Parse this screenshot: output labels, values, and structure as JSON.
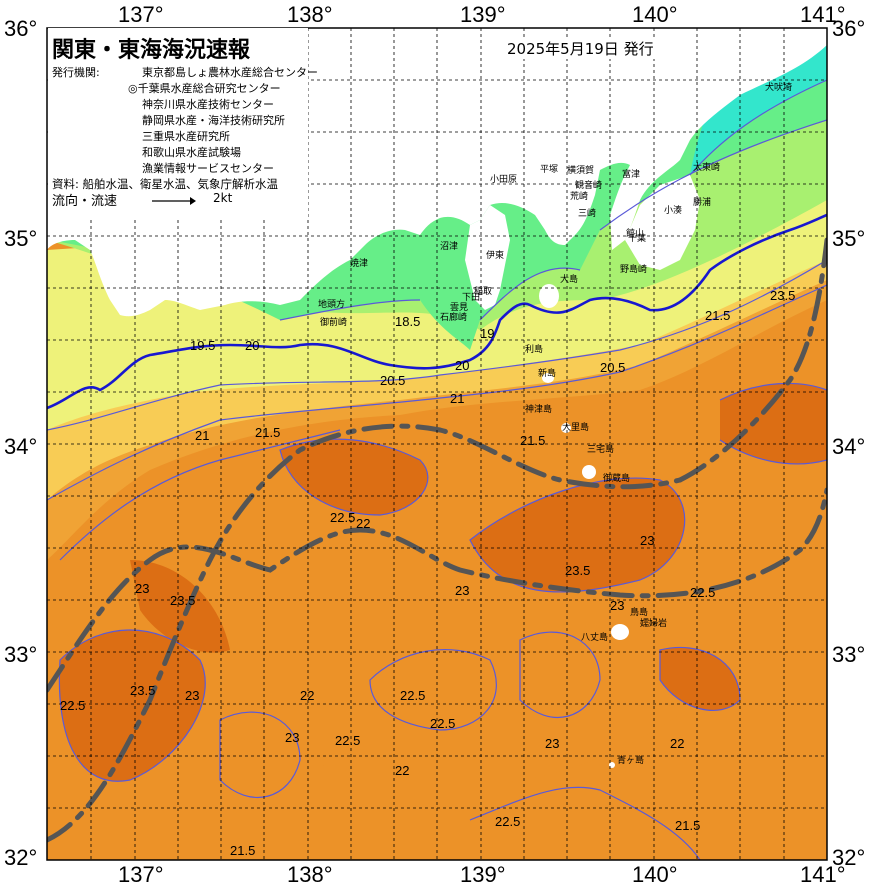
{
  "title": "関東・東海海況速報",
  "issue_date": "2025年5月19日 発行",
  "agency_label": "発行機関:",
  "agencies": [
    "東京都島しょ農林水産総合センター",
    "◎千葉県水産総合研究センター",
    "神奈川県水産技術センター",
    "静岡県水産・海洋技術研究所",
    "三重県水産研究所",
    "和歌山県水産試験場",
    "漁業情報サービスセンター"
  ],
  "source": "資料: 船舶水温、衛星水温、気象庁解析水温",
  "flow_label": "流向・流速",
  "scale_label": "2kt",
  "lon_labels": [
    "137°",
    "138°",
    "139°",
    "140°",
    "141°"
  ],
  "lat_labels": [
    "36°",
    "35°",
    "34°",
    "33°",
    "32°"
  ],
  "places": [
    {
      "name": "犬吠埼"
    },
    {
      "name": "太東崎"
    },
    {
      "name": "勝浦"
    },
    {
      "name": "小湊"
    },
    {
      "name": "千葉"
    },
    {
      "name": "富津"
    },
    {
      "name": "館山"
    },
    {
      "name": "野島崎"
    },
    {
      "name": "横須賀"
    },
    {
      "name": "観音崎"
    },
    {
      "name": "荒崎"
    },
    {
      "name": "三崎"
    },
    {
      "name": "平塚"
    },
    {
      "name": "小田原"
    },
    {
      "name": "伊東"
    },
    {
      "name": "稲取"
    },
    {
      "name": "下田"
    },
    {
      "name": "大島"
    },
    {
      "name": "利島"
    },
    {
      "name": "新島"
    },
    {
      "name": "神津島"
    },
    {
      "name": "三宅島"
    },
    {
      "name": "御蔵島"
    },
    {
      "name": "八丈島"
    },
    {
      "name": "青ヶ島"
    },
    {
      "name": "鳥島"
    },
    {
      "name": "雲見"
    },
    {
      "name": "石廊崎"
    },
    {
      "name": "沼津"
    },
    {
      "name": "焼津"
    },
    {
      "name": "御前崎"
    },
    {
      "name": "地頭方"
    },
    {
      "name": "大里島"
    },
    {
      "name": "嬬婦岩"
    }
  ],
  "isotherm_labels": [
    "18.5",
    "19",
    "19.5",
    "20",
    "20.5",
    "21",
    "21.5",
    "22",
    "22.5",
    "23",
    "23.5"
  ],
  "colors": {
    "t_lt18": "#33e6cc",
    "t_18": "#66ee88",
    "t_19": "#a8f070",
    "t_20": "#eef27a",
    "t_21": "#f8cc55",
    "t_21_5": "#f0a335",
    "t_22": "#ec9228",
    "t_23": "#dc6e14",
    "land": "#ffffff",
    "isotherm_20": "#1818d0",
    "isotherm": "#5a5ad8",
    "current_axis": "#555555"
  }
}
